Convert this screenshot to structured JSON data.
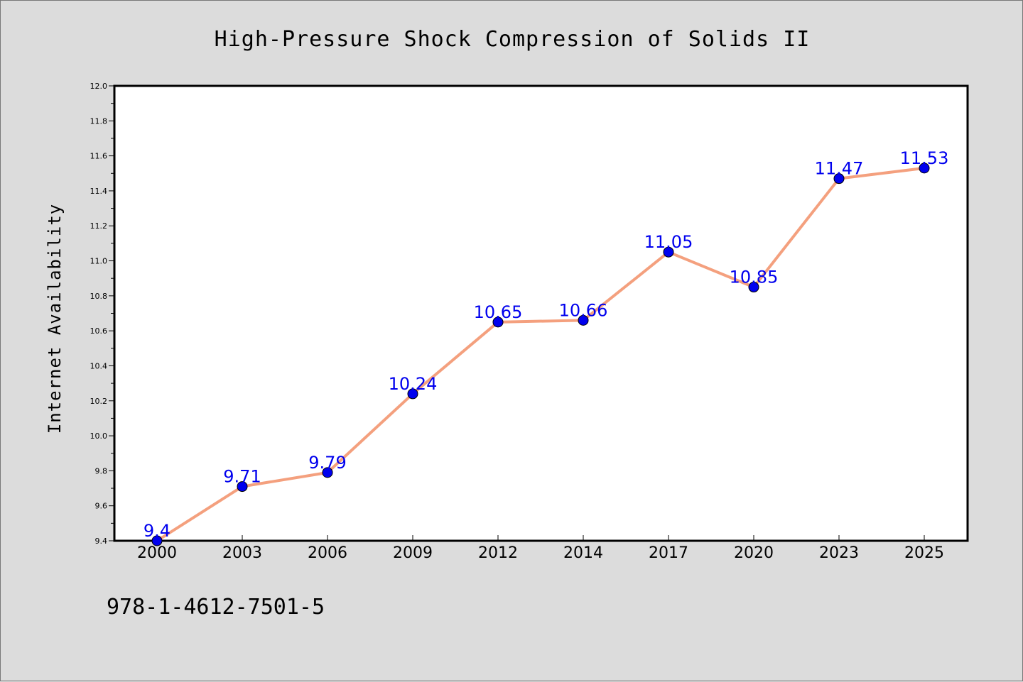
{
  "chart_data": {
    "type": "line",
    "title": "High-Pressure Shock Compression of Solids II",
    "xlabel": "",
    "ylabel": "Internet Availability",
    "categories": [
      "2000",
      "2003",
      "2006",
      "2009",
      "2012",
      "2014",
      "2017",
      "2020",
      "2023",
      "2025"
    ],
    "series": [
      {
        "values": [
          9.4,
          9.71,
          9.79,
          10.24,
          10.65,
          10.66,
          11.05,
          10.85,
          11.47,
          11.53
        ],
        "data_labels": [
          "9.4",
          "9.71",
          "9.79",
          "10.24",
          "10.65",
          "10.66",
          "11.05",
          "10.85",
          "11.47",
          "11.53"
        ]
      }
    ],
    "ylim": [
      9.4,
      12.0
    ],
    "yticks": [
      "9.4",
      "9.6",
      "9.8",
      "10.0",
      "10.2",
      "10.4",
      "10.6",
      "10.8",
      "11.0",
      "11.2",
      "11.4",
      "11.6",
      "11.8",
      "12.0"
    ],
    "grid": false,
    "legend": "none",
    "line_color": "#f4a07e",
    "marker_color": "#0000ee",
    "label_color": "#0000ee"
  },
  "footer": {
    "isbn": "978-1-4612-7501-5"
  }
}
